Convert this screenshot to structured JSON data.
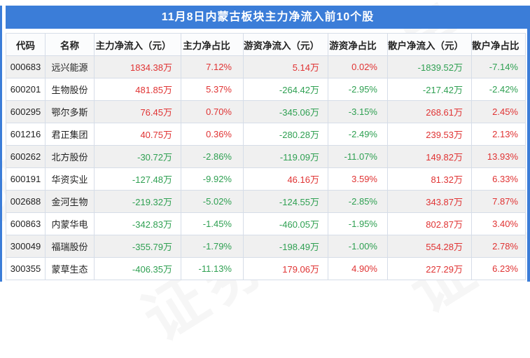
{
  "title": "11月8日内蒙古板块主力净流入前10个股",
  "watermark": "证券之星",
  "colors": {
    "accent_blue": "#3b7dd8",
    "positive_red": "#e03333",
    "negative_green": "#2fa052",
    "stripe_gray": "#f0f0f0",
    "border_gray": "#d6dde8"
  },
  "chart_data": {
    "type": "table",
    "title": "11月8日内蒙古板块主力净流入前10个股",
    "columns": [
      "代码",
      "名称",
      "主力净流入（元）",
      "主力净占比",
      "游资净流入（元）",
      "游资净占比",
      "散户净流入（元）",
      "散户净占比"
    ],
    "rows": [
      [
        "000683",
        "远兴能源",
        "1834.38万",
        "7.12%",
        "5.14万",
        "0.02%",
        "-1839.52万",
        "-7.14%"
      ],
      [
        "600201",
        "生物股份",
        "481.85万",
        "5.37%",
        "-264.42万",
        "-2.95%",
        "-217.42万",
        "-2.42%"
      ],
      [
        "600295",
        "鄂尔多斯",
        "76.45万",
        "0.70%",
        "-345.06万",
        "-3.15%",
        "268.61万",
        "2.45%"
      ],
      [
        "601216",
        "君正集团",
        "40.75万",
        "0.36%",
        "-280.28万",
        "-2.49%",
        "239.53万",
        "2.13%"
      ],
      [
        "600262",
        "北方股份",
        "-30.72万",
        "-2.86%",
        "-119.09万",
        "-11.07%",
        "149.82万",
        "13.93%"
      ],
      [
        "600191",
        "华资实业",
        "-127.48万",
        "-9.92%",
        "46.16万",
        "3.59%",
        "81.32万",
        "6.33%"
      ],
      [
        "002688",
        "金河生物",
        "-219.32万",
        "-5.02%",
        "-124.55万",
        "-2.85%",
        "343.87万",
        "7.87%"
      ],
      [
        "600863",
        "内蒙华电",
        "-342.83万",
        "-1.45%",
        "-460.05万",
        "-1.95%",
        "802.87万",
        "3.40%"
      ],
      [
        "300049",
        "福瑞股份",
        "-355.79万",
        "-1.79%",
        "-198.49万",
        "-1.00%",
        "554.28万",
        "2.78%"
      ],
      [
        "300355",
        "蒙草生态",
        "-406.35万",
        "-11.13%",
        "179.06万",
        "4.90%",
        "227.29万",
        "6.23%"
      ]
    ],
    "color_convention": "红色=净流入为正，绿色=净流入为负"
  }
}
